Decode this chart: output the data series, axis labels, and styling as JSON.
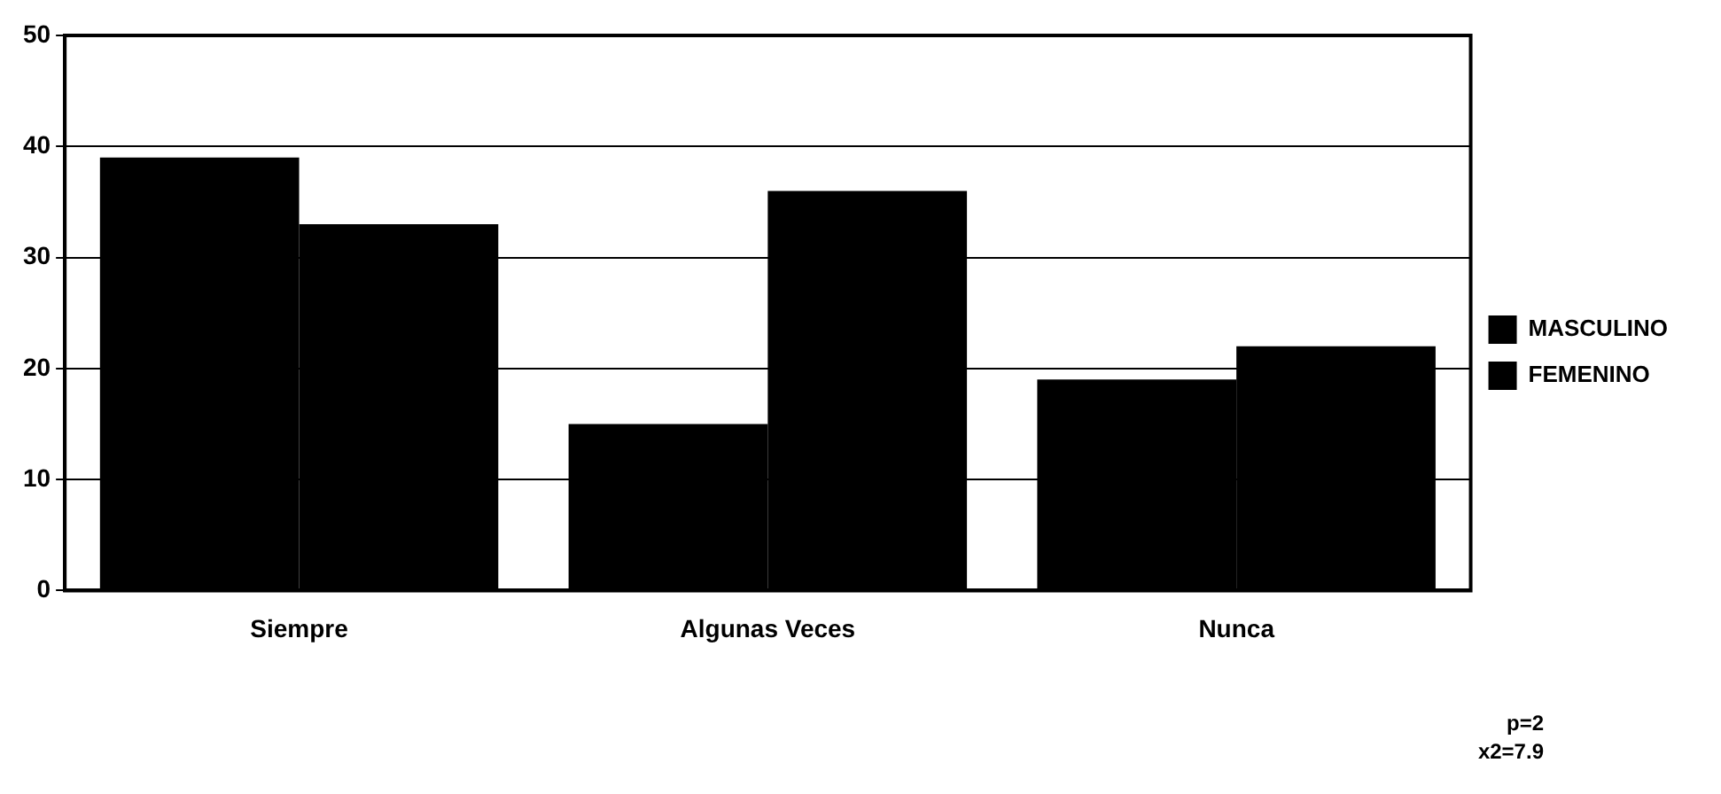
{
  "chart_data": {
    "type": "bar",
    "categories": [
      "Siempre",
      "Algunas Veces",
      "Nunca"
    ],
    "series": [
      {
        "name": "MASCULINO",
        "color": "#000000",
        "values": [
          39,
          15,
          19
        ]
      },
      {
        "name": "FEMENINO",
        "color": "#000000",
        "values": [
          33,
          36,
          22
        ]
      }
    ],
    "ylim": [
      0,
      50
    ],
    "yticks": [
      0,
      10,
      20,
      30,
      40,
      50
    ],
    "grid": "y",
    "legend": "right",
    "annotations": [
      "p=2",
      "x2=7.9"
    ]
  }
}
